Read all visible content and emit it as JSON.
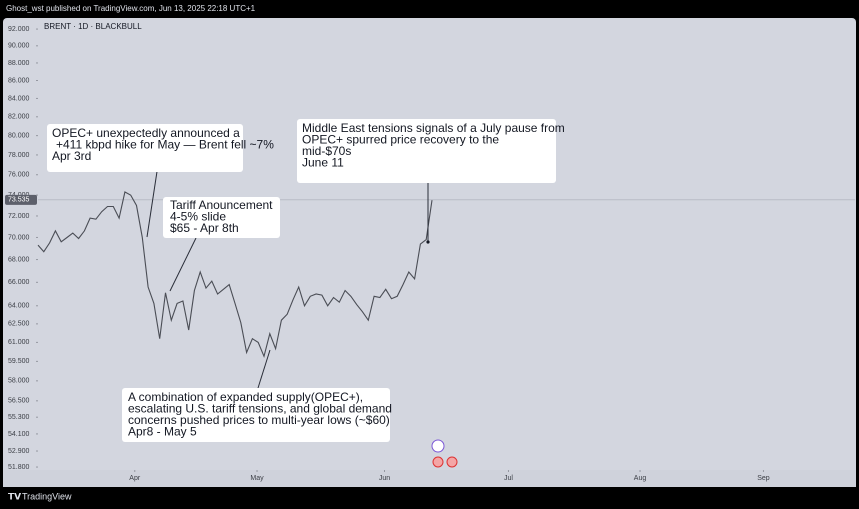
{
  "header": "Ghost_wst published on TradingView.com, Jun 13, 2025 22:18 UTC+1",
  "footer": "TradingView",
  "chart_data": {
    "type": "line",
    "title": "BRENT · 1D · BLACKBULL",
    "log_scale": true,
    "grid": false,
    "color": "#4a4d55",
    "values": [
      69.3,
      68.7,
      69.5,
      70.6,
      69.6,
      70.0,
      70.4,
      69.9,
      70.6,
      71.8,
      71.7,
      72.4,
      72.9,
      72.9,
      71.8,
      74.3,
      74.0,
      73.0,
      70.0,
      65.6,
      64.2,
      61.3,
      65.1,
      62.8,
      64.2,
      64.4,
      62.0,
      65.3,
      66.9,
      65.5,
      66.1,
      65.0,
      65.4,
      65.8,
      64.2,
      62.6,
      60.2,
      61.3,
      61.0,
      59.9,
      61.7,
      60.5,
      62.8,
      63.3,
      64.5,
      65.6,
      64.0,
      64.8,
      65.0,
      64.9,
      64.0,
      64.7,
      64.3,
      65.3,
      64.8,
      64.1,
      63.5,
      62.8,
      64.8,
      64.7,
      65.4,
      64.6,
      64.8,
      65.8,
      66.9,
      66.3,
      69.4,
      69.8,
      73.5
    ],
    "last_price": 73.535,
    "xlim": [
      0,
      141
    ],
    "xticks": [
      {
        "value": 16.7,
        "label": "Apr"
      },
      {
        "value": 37.8,
        "label": "May"
      },
      {
        "value": 59.8,
        "label": "Jun"
      },
      {
        "value": 81.2,
        "label": "Jul"
      },
      {
        "value": 103.9,
        "label": "Aug"
      },
      {
        "value": 125.2,
        "label": "Sep"
      }
    ],
    "ylim": [
      51.6,
      93.1
    ],
    "yticks": [
      {
        "value": 92,
        "label": "92.000"
      },
      {
        "value": 90,
        "label": "90.000"
      },
      {
        "value": 88,
        "label": "88.000"
      },
      {
        "value": 86,
        "label": "86.000"
      },
      {
        "value": 84,
        "label": "84.000"
      },
      {
        "value": 82,
        "label": "82.000"
      },
      {
        "value": 80,
        "label": "80.000"
      },
      {
        "value": 78,
        "label": "78.000"
      },
      {
        "value": 76,
        "label": "76.000"
      },
      {
        "value": 74,
        "label": "74.000"
      },
      {
        "value": 72,
        "label": "72.000"
      },
      {
        "value": 70,
        "label": "70.000"
      },
      {
        "value": 68,
        "label": "68.000"
      },
      {
        "value": 66,
        "label": "66.000"
      },
      {
        "value": 64,
        "label": "64.000"
      },
      {
        "value": 62.5,
        "label": "62.500"
      },
      {
        "value": 61,
        "label": "61.000"
      },
      {
        "value": 59.5,
        "label": "59.500"
      },
      {
        "value": 58,
        "label": "58.000"
      },
      {
        "value": 56.5,
        "label": "56.500"
      },
      {
        "value": 55.3,
        "label": "55.300"
      },
      {
        "value": 54.1,
        "label": "54.100"
      },
      {
        "value": 52.9,
        "label": "52.900"
      },
      {
        "value": 51.8,
        "label": "51.800"
      }
    ],
    "annotations": [
      {
        "lines": [
          "OPEC+ unexpectedly announced a",
          "+411 kbpd hike for May — Brent fell ~7%",
          "Apr 3rd"
        ]
      },
      {
        "lines": [
          "Tariff Anouncement",
          "4-5% slide",
          "$65 - Apr 8th"
        ]
      },
      {
        "lines": [
          "Middle East tensions signals of a July pause from",
          "OPEC+ spurred price recovery to the",
          "mid-$70s",
          "June 11"
        ]
      },
      {
        "lines": [
          "A combination of expanded supply(OPEC+),",
          "escalating U.S. tariff tensions, and global demand",
          "concerns pushed prices to multi-year lows (~$60)",
          "Apr8 - May 5"
        ]
      }
    ]
  }
}
